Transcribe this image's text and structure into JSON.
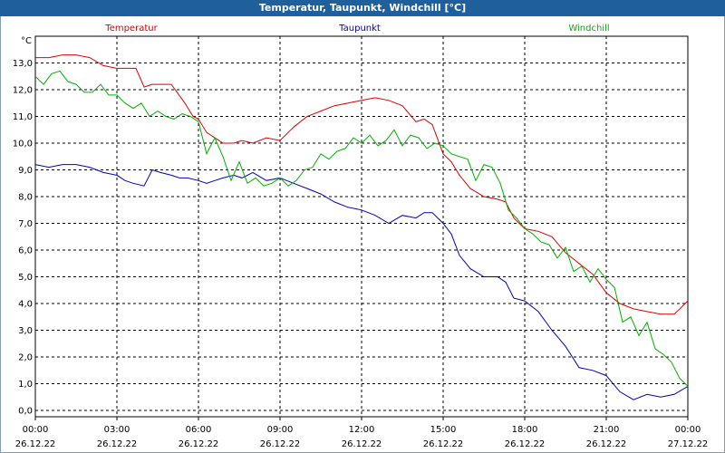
{
  "chart_data": {
    "type": "line",
    "title": "Temperatur, Taupunkt, Windchill [°C]",
    "ylabel": "°C",
    "ylim": [
      0,
      14
    ],
    "yticks": [
      "0,0",
      "1,0",
      "2,0",
      "3,0",
      "4,0",
      "5,0",
      "6,0",
      "7,0",
      "8,0",
      "9,0",
      "10,0",
      "11,0",
      "12,0",
      "13,0"
    ],
    "xlim": [
      0,
      24
    ],
    "xticks": [
      {
        "time": "00:00",
        "date": "26.12.22"
      },
      {
        "time": "03:00",
        "date": "26.12.22"
      },
      {
        "time": "06:00",
        "date": "26.12.22"
      },
      {
        "time": "09:00",
        "date": "26.12.22"
      },
      {
        "time": "12:00",
        "date": "26.12.22"
      },
      {
        "time": "15:00",
        "date": "26.12.22"
      },
      {
        "time": "18:00",
        "date": "26.12.22"
      },
      {
        "time": "21:00",
        "date": "26.12.22"
      },
      {
        "time": "00:00",
        "date": "27.12.22"
      }
    ],
    "grid": true,
    "series": [
      {
        "name": "Temperatur",
        "color": "#e00000",
        "x": [
          0,
          0.5,
          1,
          1.5,
          2,
          2.5,
          3,
          3.3,
          3.7,
          4,
          4.3,
          4.6,
          5,
          5.5,
          5.8,
          6,
          6.3,
          6.6,
          6.9,
          7.3,
          7.6,
          8,
          8.5,
          9,
          9.5,
          10,
          10.5,
          11,
          11.5,
          12,
          12.5,
          13,
          13.5,
          14,
          14.3,
          14.6,
          15,
          15.3,
          15.6,
          16,
          16.5,
          17,
          17.3,
          17.6,
          18,
          18.5,
          19,
          19.5,
          20,
          20.5,
          21,
          21.5,
          22,
          22.5,
          23,
          23.5,
          24
        ],
        "values": [
          13.2,
          13.2,
          13.3,
          13.3,
          13.2,
          12.9,
          12.8,
          12.8,
          12.8,
          12.1,
          12.2,
          12.2,
          12.2,
          11.5,
          11.0,
          10.9,
          10.4,
          10.2,
          10.0,
          10.0,
          10.1,
          10.0,
          10.2,
          10.1,
          10.6,
          11.0,
          11.2,
          11.4,
          11.5,
          11.6,
          11.7,
          11.6,
          11.4,
          10.8,
          10.9,
          10.7,
          9.6,
          9.3,
          8.8,
          8.3,
          8.0,
          7.9,
          7.8,
          7.2,
          6.8,
          6.7,
          6.5,
          5.9,
          5.5,
          5.1,
          4.4,
          4.0,
          3.8,
          3.7,
          3.6,
          3.6,
          4.1
        ]
      },
      {
        "name": "Taupunkt",
        "color": "#0000c0",
        "x": [
          0,
          0.5,
          1,
          1.5,
          2,
          2.5,
          3,
          3.3,
          3.6,
          4,
          4.3,
          4.6,
          5,
          5.3,
          5.6,
          6,
          6.3,
          6.6,
          6.9,
          7.3,
          7.6,
          8,
          8.5,
          9,
          9.5,
          10,
          10.5,
          11,
          11.5,
          12,
          12.5,
          13,
          13.5,
          14,
          14.3,
          14.6,
          15,
          15.3,
          15.6,
          16,
          16.5,
          17,
          17.3,
          17.6,
          18,
          18.5,
          19,
          19.5,
          20,
          20.5,
          21,
          21.5,
          22,
          22.5,
          23,
          23.5,
          24
        ],
        "values": [
          9.2,
          9.1,
          9.2,
          9.2,
          9.1,
          8.9,
          8.8,
          8.6,
          8.5,
          8.4,
          9.0,
          8.9,
          8.8,
          8.7,
          8.7,
          8.6,
          8.5,
          8.6,
          8.7,
          8.8,
          8.7,
          8.9,
          8.6,
          8.7,
          8.5,
          8.3,
          8.1,
          7.8,
          7.6,
          7.5,
          7.3,
          7.0,
          7.3,
          7.2,
          7.4,
          7.4,
          7.0,
          6.6,
          5.8,
          5.3,
          5.0,
          5.0,
          4.8,
          4.2,
          4.1,
          3.7,
          3.0,
          2.4,
          1.6,
          1.5,
          1.3,
          0.7,
          0.4,
          0.6,
          0.5,
          0.6,
          0.9
        ]
      },
      {
        "name": "Windchill",
        "color": "#00b000",
        "x": [
          0,
          0.3,
          0.6,
          0.9,
          1.2,
          1.5,
          1.8,
          2.1,
          2.4,
          2.7,
          3,
          3.3,
          3.6,
          3.9,
          4.2,
          4.5,
          4.8,
          5.1,
          5.4,
          5.7,
          6,
          6.3,
          6.6,
          6.9,
          7.2,
          7.5,
          7.8,
          8.1,
          8.4,
          8.7,
          9,
          9.3,
          9.6,
          9.9,
          10.2,
          10.5,
          10.8,
          11.1,
          11.4,
          11.7,
          12,
          12.3,
          12.6,
          12.9,
          13.2,
          13.5,
          13.8,
          14.1,
          14.4,
          14.7,
          15,
          15.3,
          15.6,
          15.9,
          16.2,
          16.5,
          16.8,
          17.1,
          17.4,
          17.7,
          18,
          18.3,
          18.6,
          18.9,
          19.2,
          19.5,
          19.8,
          20.1,
          20.4,
          20.7,
          21,
          21.3,
          21.6,
          21.9,
          22.2,
          22.5,
          22.8,
          23.1,
          23.4,
          23.7,
          24
        ],
        "values": [
          12.5,
          12.2,
          12.6,
          12.7,
          12.3,
          12.2,
          11.9,
          11.9,
          12.2,
          11.8,
          11.8,
          11.5,
          11.3,
          11.5,
          11.0,
          11.2,
          11.0,
          10.9,
          11.1,
          11.0,
          10.8,
          9.6,
          10.2,
          9.5,
          8.6,
          9.3,
          8.5,
          8.7,
          8.4,
          8.5,
          8.7,
          8.4,
          8.6,
          9.0,
          9.1,
          9.6,
          9.4,
          9.7,
          9.8,
          10.2,
          10.0,
          10.3,
          9.9,
          10.1,
          10.5,
          9.9,
          10.3,
          10.2,
          9.8,
          10.0,
          9.9,
          9.6,
          9.5,
          9.4,
          8.6,
          9.2,
          9.1,
          8.5,
          7.5,
          7.2,
          6.8,
          6.6,
          6.3,
          6.2,
          5.7,
          6.1,
          5.2,
          5.4,
          4.8,
          5.3,
          4.9,
          4.6,
          3.3,
          3.5,
          2.8,
          3.3,
          2.3,
          2.1,
          1.8,
          1.2,
          0.9
        ]
      }
    ]
  }
}
